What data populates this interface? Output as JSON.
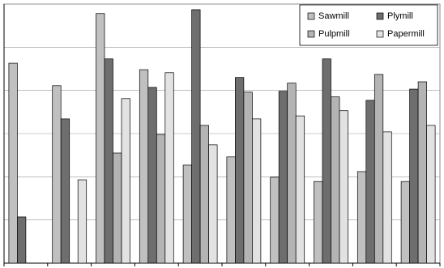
{
  "chart_data": {
    "type": "bar",
    "categories": [
      null,
      null,
      null,
      null,
      null,
      null,
      null,
      null,
      null,
      null
    ],
    "series": [
      {
        "name": "Sawmill",
        "color": "#c0c0c0",
        "values": [
          4.63,
          4.11,
          5.78,
          4.48,
          2.27,
          2.46,
          1.99,
          1.89,
          2.12,
          1.89
        ]
      },
      {
        "name": "Plymill",
        "color": "#6e6e6e",
        "values": [
          1.07,
          3.34,
          4.73,
          4.07,
          5.87,
          4.3,
          3.98,
          4.73,
          3.77,
          4.03
        ]
      },
      {
        "name": "Pulpmill",
        "color": "#b4b4b4",
        "values": [
          0,
          0,
          2.55,
          2.98,
          3.19,
          3.96,
          4.17,
          3.85,
          4.37,
          4.2
        ]
      },
      {
        "name": "Papermill",
        "color": "#e2e2e2",
        "values": [
          0,
          1.93,
          3.81,
          4.41,
          2.74,
          3.34,
          3.41,
          3.53,
          3.04,
          3.19
        ]
      }
    ],
    "ylim": [
      0,
      6
    ],
    "yticks": [
      0,
      1,
      2,
      3,
      4,
      5,
      6
    ],
    "grid": true,
    "legend": "top-right"
  }
}
